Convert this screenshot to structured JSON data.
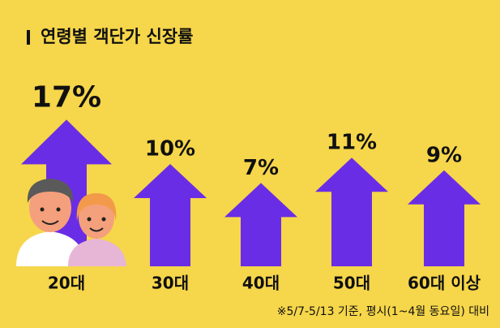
{
  "chart_data": {
    "type": "bar",
    "title": "연령별 객단가 신장률",
    "categories": [
      "20대",
      "30대",
      "40대",
      "50대",
      "60대 이상"
    ],
    "values": [
      17,
      10,
      7,
      11,
      9
    ],
    "value_labels": [
      "17%",
      "10%",
      "7%",
      "11%",
      "9%"
    ],
    "color": "#6a2de6",
    "footnote": "※5/7-5/13 기준, 평시(1~4월 동요일) 대비"
  }
}
